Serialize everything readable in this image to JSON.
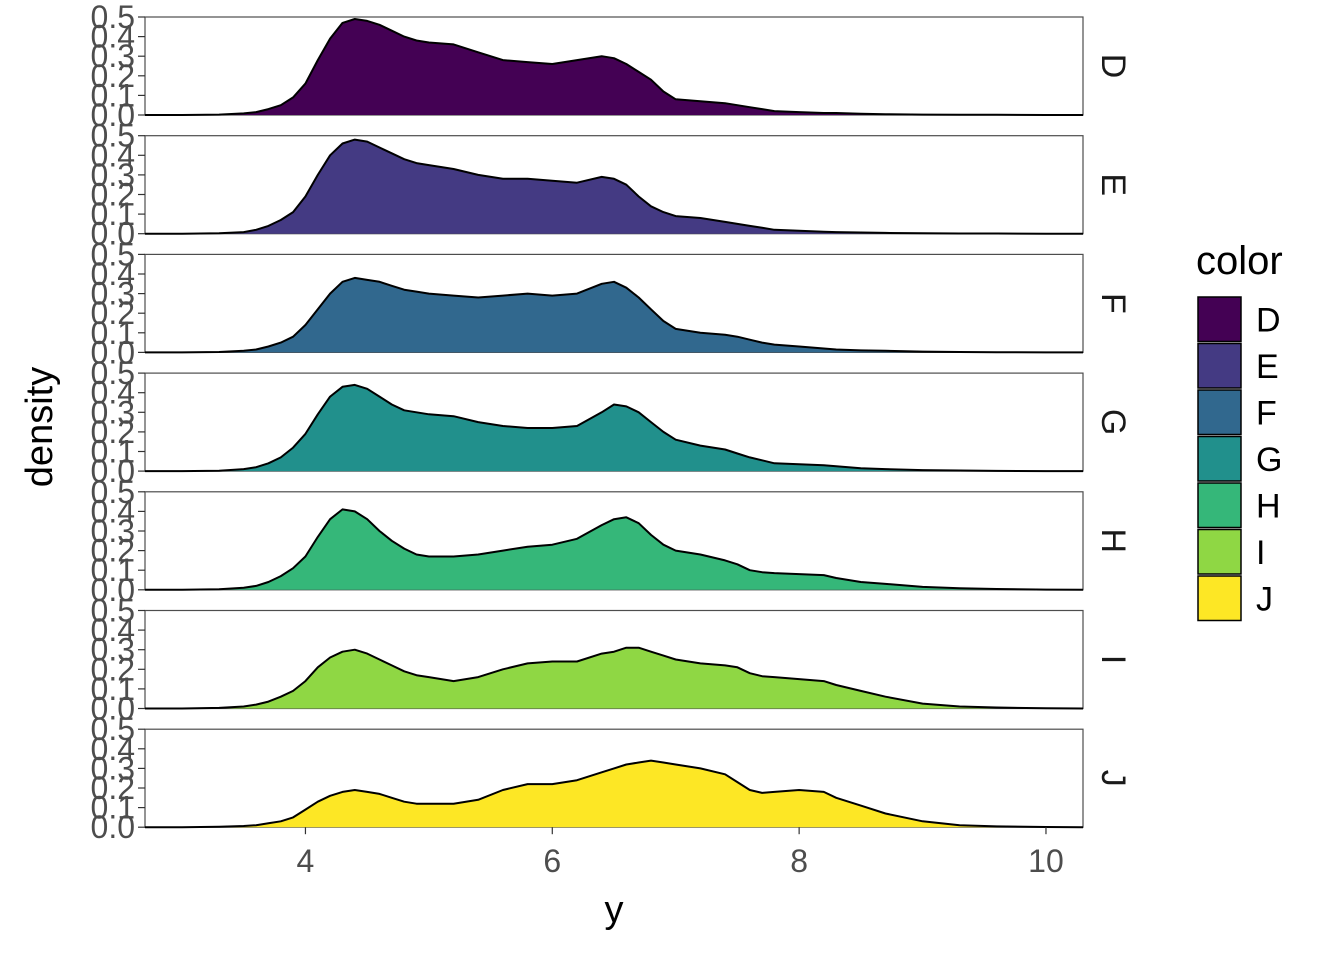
{
  "chart_data": {
    "type": "area",
    "title": "",
    "xlabel": "y",
    "ylabel": "density",
    "xlim": [
      2.7,
      10.3
    ],
    "ylim": [
      0,
      0.5
    ],
    "x_ticks": [
      4,
      6,
      8,
      10
    ],
    "x_tick_labels": [
      "4",
      "6",
      "8",
      "10"
    ],
    "y_ticks": [
      0.0,
      0.1,
      0.2,
      0.3,
      0.4,
      0.5
    ],
    "y_tick_labels": [
      "0.0",
      "0.1",
      "0.2",
      "0.3",
      "0.4",
      "0.5"
    ],
    "legend": {
      "title": "color",
      "position": "right",
      "entries": [
        "D",
        "E",
        "F",
        "G",
        "H",
        "I",
        "J"
      ],
      "colors": [
        "#440154",
        "#443A83",
        "#31688E",
        "#21908C",
        "#35B779",
        "#8FD744",
        "#FDE725"
      ]
    },
    "x": [
      2.7,
      3.0,
      3.3,
      3.5,
      3.6,
      3.7,
      3.8,
      3.9,
      4.0,
      4.1,
      4.2,
      4.3,
      4.4,
      4.5,
      4.6,
      4.7,
      4.8,
      4.9,
      5.0,
      5.2,
      5.4,
      5.6,
      5.8,
      6.0,
      6.2,
      6.4,
      6.5,
      6.6,
      6.7,
      6.8,
      6.9,
      7.0,
      7.2,
      7.4,
      7.5,
      7.6,
      7.7,
      7.8,
      8.0,
      8.2,
      8.3,
      8.5,
      8.7,
      9.0,
      9.3,
      9.6,
      10.0,
      10.3
    ],
    "series": [
      {
        "name": "D",
        "color": "#440154",
        "values": [
          0,
          0,
          0.002,
          0.008,
          0.015,
          0.03,
          0.05,
          0.09,
          0.16,
          0.28,
          0.39,
          0.47,
          0.49,
          0.48,
          0.46,
          0.43,
          0.4,
          0.38,
          0.37,
          0.36,
          0.32,
          0.28,
          0.27,
          0.26,
          0.28,
          0.3,
          0.29,
          0.26,
          0.22,
          0.18,
          0.12,
          0.08,
          0.07,
          0.06,
          0.05,
          0.04,
          0.03,
          0.02,
          0.015,
          0.01,
          0.01,
          0.006,
          0.004,
          0.002,
          0.001,
          0.001,
          0,
          0
        ]
      },
      {
        "name": "E",
        "color": "#443A83",
        "values": [
          0,
          0,
          0.002,
          0.008,
          0.02,
          0.04,
          0.07,
          0.11,
          0.19,
          0.3,
          0.4,
          0.46,
          0.48,
          0.47,
          0.44,
          0.41,
          0.38,
          0.36,
          0.35,
          0.33,
          0.3,
          0.28,
          0.28,
          0.27,
          0.26,
          0.29,
          0.28,
          0.25,
          0.19,
          0.14,
          0.11,
          0.09,
          0.08,
          0.06,
          0.05,
          0.04,
          0.03,
          0.02,
          0.015,
          0.01,
          0.008,
          0.006,
          0.004,
          0.002,
          0.001,
          0.001,
          0,
          0
        ]
      },
      {
        "name": "F",
        "color": "#31688E",
        "values": [
          0,
          0,
          0.002,
          0.008,
          0.015,
          0.03,
          0.05,
          0.08,
          0.14,
          0.22,
          0.3,
          0.36,
          0.38,
          0.37,
          0.36,
          0.34,
          0.32,
          0.31,
          0.3,
          0.29,
          0.28,
          0.29,
          0.3,
          0.29,
          0.3,
          0.35,
          0.36,
          0.33,
          0.28,
          0.22,
          0.16,
          0.12,
          0.1,
          0.09,
          0.08,
          0.065,
          0.05,
          0.04,
          0.03,
          0.02,
          0.015,
          0.01,
          0.008,
          0.004,
          0.002,
          0.001,
          0,
          0
        ]
      },
      {
        "name": "G",
        "color": "#21908C",
        "values": [
          0,
          0,
          0.002,
          0.01,
          0.02,
          0.04,
          0.07,
          0.12,
          0.19,
          0.29,
          0.38,
          0.43,
          0.44,
          0.42,
          0.38,
          0.34,
          0.31,
          0.3,
          0.29,
          0.28,
          0.25,
          0.23,
          0.22,
          0.22,
          0.23,
          0.3,
          0.34,
          0.33,
          0.3,
          0.25,
          0.2,
          0.16,
          0.13,
          0.11,
          0.09,
          0.07,
          0.055,
          0.04,
          0.035,
          0.03,
          0.025,
          0.015,
          0.01,
          0.005,
          0.003,
          0.001,
          0,
          0
        ]
      },
      {
        "name": "H",
        "color": "#35B779",
        "values": [
          0,
          0,
          0.003,
          0.01,
          0.02,
          0.04,
          0.07,
          0.11,
          0.17,
          0.27,
          0.36,
          0.41,
          0.4,
          0.36,
          0.3,
          0.25,
          0.21,
          0.18,
          0.17,
          0.17,
          0.18,
          0.2,
          0.22,
          0.23,
          0.26,
          0.33,
          0.36,
          0.37,
          0.34,
          0.28,
          0.23,
          0.2,
          0.18,
          0.15,
          0.13,
          0.1,
          0.09,
          0.085,
          0.08,
          0.075,
          0.06,
          0.04,
          0.03,
          0.015,
          0.008,
          0.004,
          0.001,
          0
        ]
      },
      {
        "name": "I",
        "color": "#8FD744",
        "values": [
          0,
          0,
          0.003,
          0.01,
          0.02,
          0.035,
          0.06,
          0.09,
          0.14,
          0.21,
          0.26,
          0.29,
          0.3,
          0.28,
          0.25,
          0.22,
          0.19,
          0.17,
          0.16,
          0.14,
          0.16,
          0.2,
          0.23,
          0.24,
          0.24,
          0.28,
          0.29,
          0.31,
          0.31,
          0.29,
          0.27,
          0.25,
          0.23,
          0.22,
          0.21,
          0.18,
          0.165,
          0.16,
          0.15,
          0.14,
          0.12,
          0.09,
          0.06,
          0.025,
          0.01,
          0.005,
          0.001,
          0
        ]
      },
      {
        "name": "J",
        "color": "#FDE725",
        "values": [
          0,
          0,
          0.002,
          0.006,
          0.01,
          0.02,
          0.03,
          0.05,
          0.09,
          0.13,
          0.16,
          0.18,
          0.19,
          0.18,
          0.17,
          0.15,
          0.13,
          0.12,
          0.12,
          0.12,
          0.14,
          0.19,
          0.22,
          0.22,
          0.24,
          0.28,
          0.3,
          0.32,
          0.33,
          0.34,
          0.33,
          0.32,
          0.3,
          0.27,
          0.23,
          0.19,
          0.175,
          0.18,
          0.19,
          0.18,
          0.15,
          0.11,
          0.07,
          0.03,
          0.01,
          0.004,
          0.001,
          0
        ]
      }
    ]
  }
}
